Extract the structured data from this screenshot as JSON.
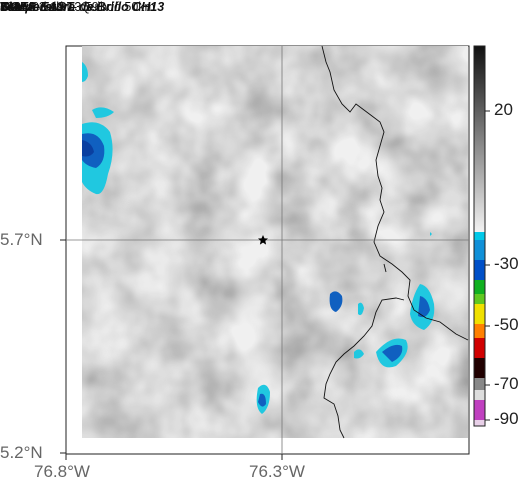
{
  "header": {
    "satellite": "GOES-EAST",
    "product": "Temperatura de Brillo CH13",
    "route": "Vía Medellín - Quibdó 50km",
    "agency": "SIATA",
    "datetime": "2024-03-19 13:59"
  },
  "axes": {
    "y_ticks": [
      "5.7°N",
      "5.2°N"
    ],
    "x_ticks": [
      "76.8°W",
      "76.3°W"
    ]
  },
  "colorbar": {
    "tick_labels": [
      "20",
      "-30",
      "-50",
      "-70",
      "-90"
    ],
    "colors": {
      "gray_top": "#111111",
      "gray_bottom": "#f2f2f2",
      "cyan": "#00c8e8",
      "blue": "#0050c8",
      "green": "#10b020",
      "yellow": "#f0e000",
      "orange": "#ff8000",
      "red": "#d00000",
      "black": "#000000",
      "magenta": "#c040c0"
    }
  },
  "map": {
    "marker_icon": "star-icon",
    "cold_cloud_colors": {
      "edge": "#20c8e0",
      "core": "#1060c0",
      "deep": "#0a3fa0"
    }
  }
}
